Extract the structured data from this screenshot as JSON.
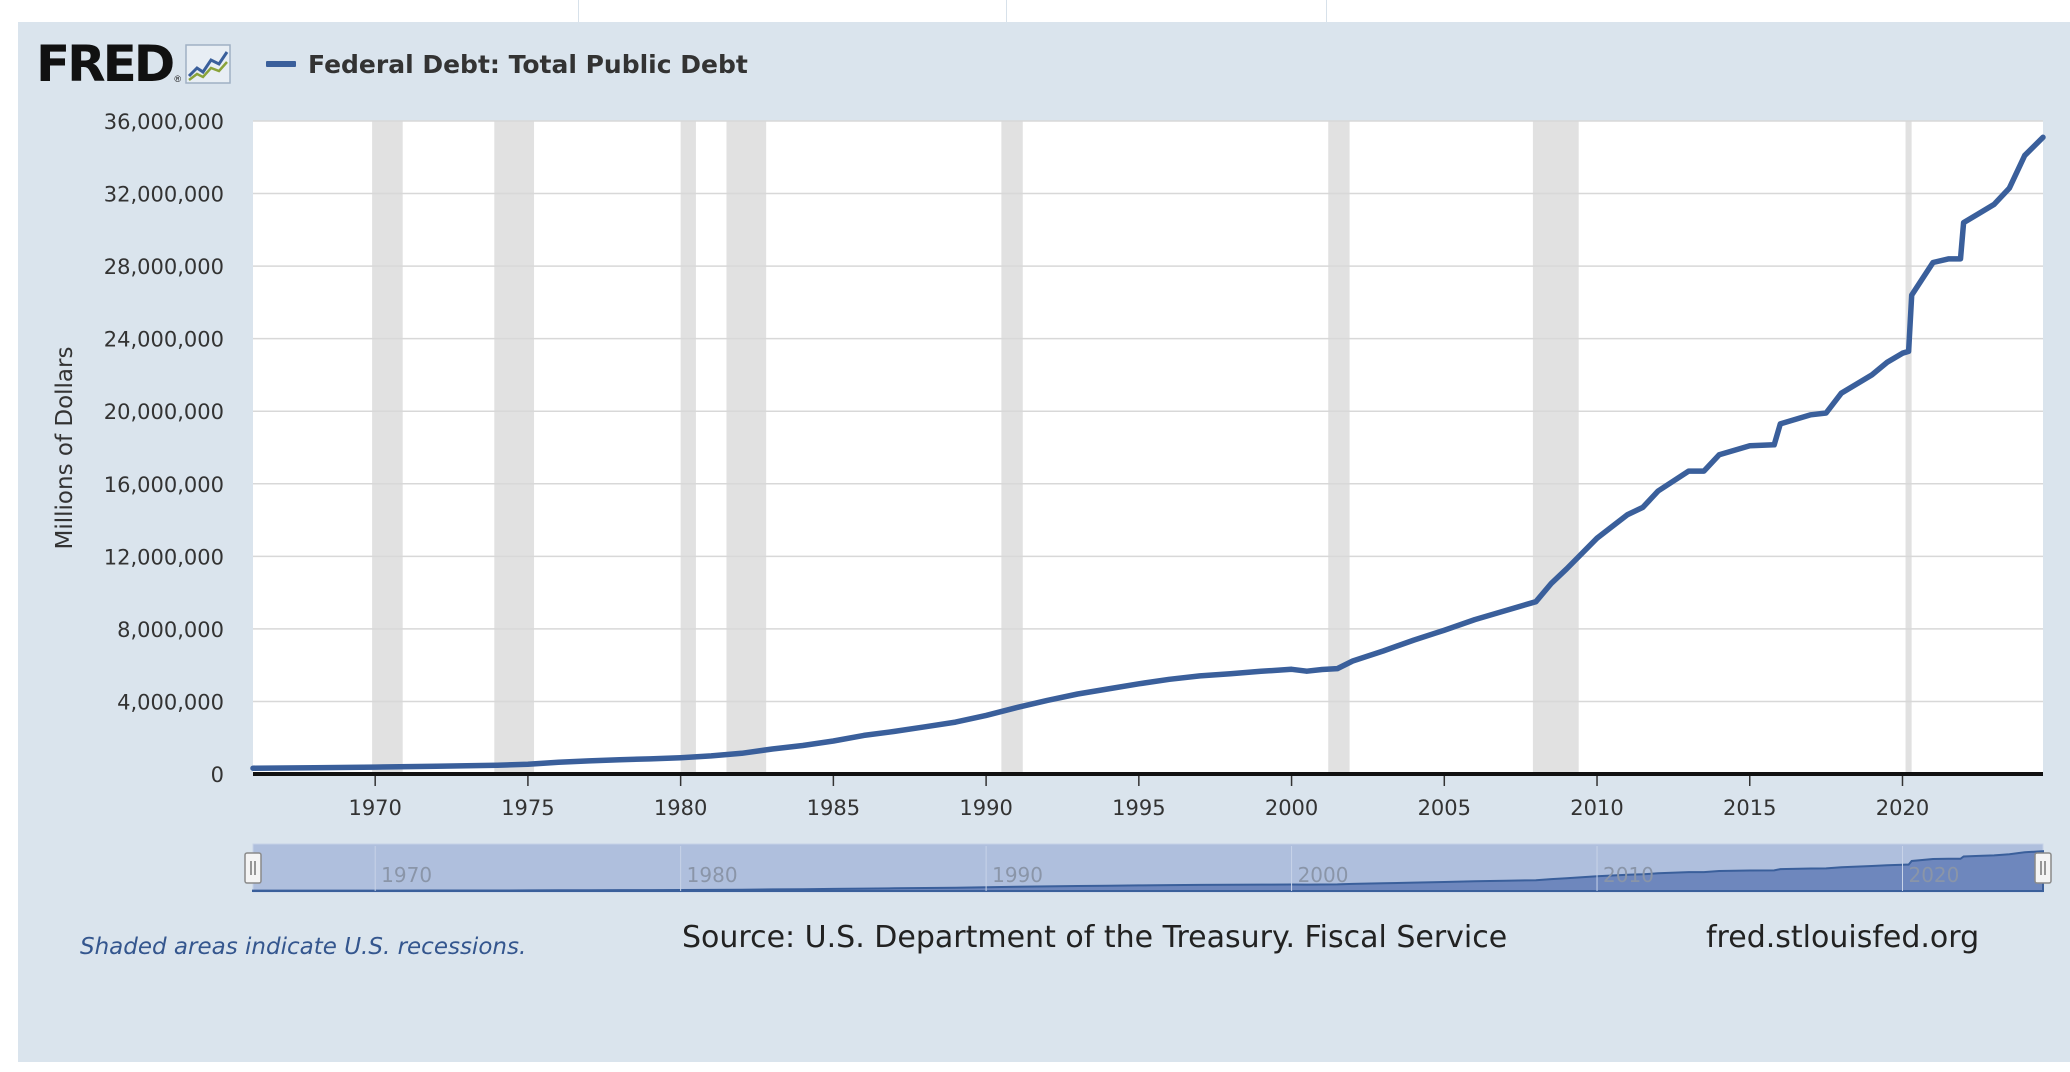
{
  "header": {
    "logo_text": "FRED",
    "logo_reg": "®",
    "logo_icon": "mini-line-chart-icon"
  },
  "colors": {
    "series": "#3a5f9b",
    "recession": "#e1e1e1",
    "panel": "#dae4ed",
    "navigator_fill": "#afbfdd",
    "navigator_area": "#6e87bd"
  },
  "footer": {
    "note": "Shaded areas indicate U.S. recessions.",
    "source": "Source: U.S. Department of the Treasury. Fiscal Service",
    "site": "fred.stlouisfed.org"
  },
  "chart_data": {
    "type": "line",
    "title": "",
    "xlabel": "",
    "ylabel": "Millions of Dollars",
    "ylim": [
      0,
      36000000
    ],
    "xlim": [
      1966.0,
      2024.6
    ],
    "yticks": [
      0,
      4000000,
      8000000,
      12000000,
      16000000,
      20000000,
      24000000,
      28000000,
      32000000,
      36000000
    ],
    "ytick_labels": [
      "0",
      "4,000,000",
      "8,000,000",
      "12,000,000",
      "16,000,000",
      "20,000,000",
      "24,000,000",
      "28,000,000",
      "32,000,000",
      "36,000,000"
    ],
    "xticks": [
      1970,
      1975,
      1980,
      1985,
      1990,
      1995,
      2000,
      2005,
      2010,
      2015,
      2020
    ],
    "xtick_labels": [
      "1970",
      "1975",
      "1980",
      "1985",
      "1990",
      "1995",
      "2000",
      "2005",
      "2010",
      "2015",
      "2020"
    ],
    "navigator_ticks": [
      "1970",
      "1980",
      "1990",
      "2000",
      "2010",
      "2020"
    ],
    "grid": true,
    "legend_position": "top-left",
    "recessions": [
      [
        1969.9,
        1970.9
      ],
      [
        1973.9,
        1975.2
      ],
      [
        1980.0,
        1980.5
      ],
      [
        1981.5,
        1982.8
      ],
      [
        1990.5,
        1991.2
      ],
      [
        2001.2,
        2001.9
      ],
      [
        2007.9,
        2009.4
      ],
      [
        2020.1,
        2020.3
      ]
    ],
    "series": [
      {
        "name": "Federal Debt: Total Public Debt",
        "x": [
          1966.0,
          1968.0,
          1970.0,
          1972.0,
          1974.0,
          1975.0,
          1976.0,
          1977.0,
          1978.0,
          1979.0,
          1980.0,
          1981.0,
          1982.0,
          1983.0,
          1984.0,
          1985.0,
          1986.0,
          1987.0,
          1988.0,
          1989.0,
          1990.0,
          1991.0,
          1992.0,
          1993.0,
          1994.0,
          1995.0,
          1996.0,
          1997.0,
          1998.0,
          1999.0,
          2000.0,
          2000.5,
          2001.0,
          2001.5,
          2002.0,
          2003.0,
          2004.0,
          2005.0,
          2006.0,
          2007.0,
          2008.0,
          2008.5,
          2009.0,
          2010.0,
          2011.0,
          2011.5,
          2012.0,
          2013.0,
          2013.5,
          2014.0,
          2015.0,
          2015.8,
          2016.0,
          2017.0,
          2017.5,
          2018.0,
          2019.0,
          2019.5,
          2020.0,
          2020.2,
          2020.3,
          2021.0,
          2021.5,
          2021.9,
          2022.0,
          2022.5,
          2023.0,
          2023.5,
          2024.0,
          2024.6
        ],
        "values": [
          320000,
          350000,
          380000,
          430000,
          480000,
          540000,
          650000,
          720000,
          790000,
          830000,
          900000,
          1000000,
          1140000,
          1380000,
          1570000,
          1820000,
          2130000,
          2350000,
          2600000,
          2860000,
          3230000,
          3660000,
          4060000,
          4410000,
          4690000,
          4970000,
          5220000,
          5410000,
          5530000,
          5660000,
          5770000,
          5670000,
          5760000,
          5810000,
          6230000,
          6780000,
          7380000,
          7930000,
          8510000,
          9010000,
          9500000,
          10500000,
          11300000,
          13000000,
          14300000,
          14700000,
          15600000,
          16700000,
          16700000,
          17600000,
          18100000,
          18150000,
          19300000,
          19800000,
          19900000,
          21000000,
          22000000,
          22700000,
          23200000,
          23300000,
          26400000,
          28200000,
          28400000,
          28400000,
          30400000,
          30900000,
          31400000,
          32300000,
          34100000,
          35100000
        ]
      }
    ]
  }
}
